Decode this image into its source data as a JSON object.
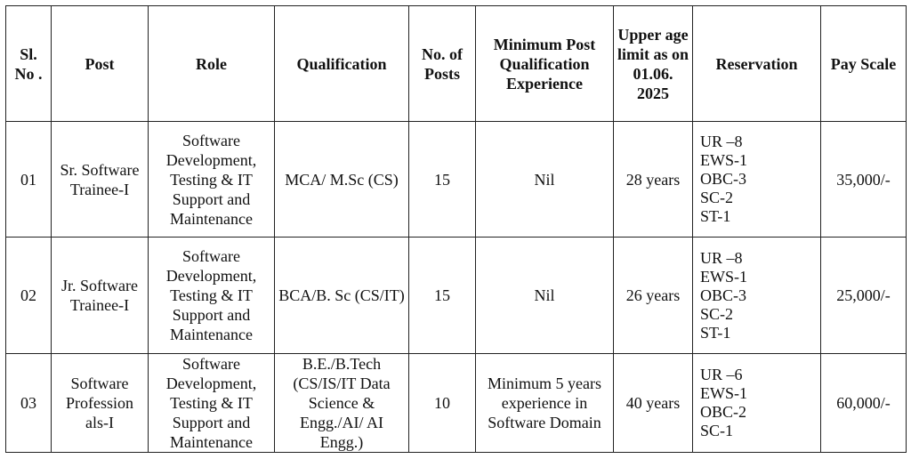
{
  "table": {
    "headers": [
      "Sl. No .",
      "Post",
      "Role",
      "Qualification",
      "No. of Posts",
      "Minimum Post Qualification Experience",
      "Upper age limit as on 01.06. 2025",
      "Reservation",
      "Pay Scale"
    ],
    "rows": [
      [
        "01",
        "Sr. Software Trainee-I",
        "Software Development, Testing & IT Support and Maintenance",
        "MCA/ M.Sc (CS)",
        "15",
        "Nil",
        "28 years",
        [
          "UR –8",
          "EWS-1",
          "OBC-3",
          "SC-2",
          "ST-1"
        ],
        "35,000/-"
      ],
      [
        "02",
        "Jr. Software Trainee-I",
        "Software Development, Testing & IT Support and Maintenance",
        "BCA/B. Sc (CS/IT)",
        "15",
        "Nil",
        "26 years",
        [
          "UR –8",
          "EWS-1",
          "OBC-3",
          "SC-2",
          "ST-1"
        ],
        "25,000/-"
      ],
      [
        "03",
        "Software Profession als-I",
        "Software Development, Testing & IT Support and Maintenance",
        "B.E./B.Tech (CS/IS/IT Data Science & Engg./AI/ AI Engg.)",
        "10",
        "Minimum 5 years experience in Software Domain",
        "40 years",
        [
          "UR –6",
          "EWS-1",
          "OBC-2",
          "SC-1"
        ],
        "60,000/-"
      ]
    ]
  }
}
